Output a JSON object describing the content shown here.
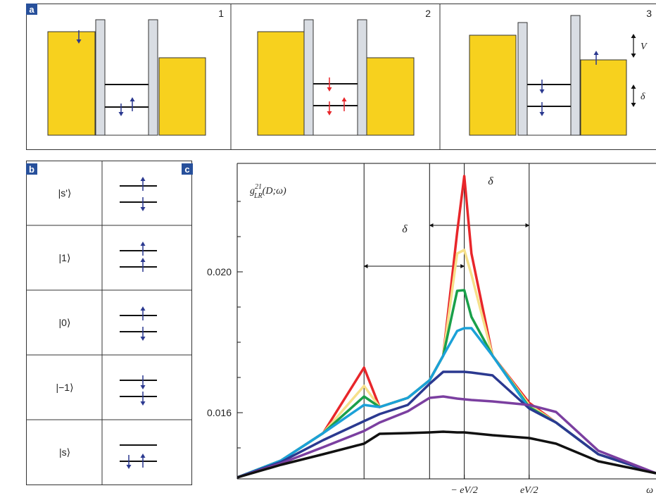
{
  "panel_labels": [
    "a",
    "b",
    "c"
  ],
  "diagram": {
    "frames": [
      "1",
      "2",
      "3"
    ],
    "bias_label": "V",
    "splitting_label": "δ"
  },
  "table": {
    "rows": [
      "|s'⟩",
      "|1⟩",
      "|0⟩",
      "|−1⟩",
      "|s⟩"
    ]
  },
  "chart_data": {
    "type": "line",
    "y_label": {
      "base": "g",
      "sub": "LR",
      "sup": "21",
      "args": "(D;ω)"
    },
    "x_label": "ω",
    "x": [
      -8.0,
      -6.65,
      -5.35,
      -4.09,
      -3.61,
      -2.74,
      -2.07,
      -1.65,
      -1.22,
      -1.0,
      -0.78,
      -0.13,
      1.0,
      1.83,
      3.13,
      4.91
    ],
    "xlim": [
      -8.0,
      4.91
    ],
    "xticks": [
      {
        "value": -1,
        "label": "− eV/2"
      },
      {
        "value": 1,
        "label": "eV/2"
      }
    ],
    "reference_lines": [
      -4.09,
      -2.07,
      -1,
      1
    ],
    "annotations": [
      "δ",
      "δ"
    ],
    "ylim": [
      0.01412,
      0.02308
    ],
    "yticks": [
      0.016,
      {
        "value": 0.02,
        "label": "0.020"
      }
    ],
    "minor_yticks": [
      0.015,
      0.017,
      0.018,
      0.019,
      0.021,
      0.022
    ],
    "series": [
      {
        "color": "#e8262a",
        "values": [
          0.01416,
          0.01464,
          0.01542,
          0.01728,
          0.01616,
          0.01642,
          0.01692,
          0.01762,
          0.02112,
          0.02272,
          0.02052,
          0.01762,
          0.01628,
          0.01572,
          0.01482,
          0.01428
        ]
      },
      {
        "color": "#f6e08a",
        "values": [
          0.01416,
          0.01464,
          0.01542,
          0.01676,
          0.01616,
          0.01642,
          0.01692,
          0.01762,
          0.02052,
          0.02062,
          0.01992,
          0.01762,
          0.01622,
          0.01572,
          0.01482,
          0.01428
        ]
      },
      {
        "color": "#1aa04a",
        "values": [
          0.01416,
          0.01464,
          0.01542,
          0.01646,
          0.01616,
          0.01642,
          0.01692,
          0.01762,
          0.01946,
          0.01948,
          0.01872,
          0.01762,
          0.01616,
          0.01572,
          0.01482,
          0.01428
        ]
      },
      {
        "color": "#1ba1d8",
        "values": [
          0.01416,
          0.01464,
          0.01542,
          0.01622,
          0.01616,
          0.01642,
          0.01692,
          0.01762,
          0.01832,
          0.0184,
          0.0184,
          0.01762,
          0.01612,
          0.01572,
          0.01482,
          0.01428
        ]
      },
      {
        "color": "#2b3990",
        "values": [
          0.01416,
          0.0146,
          0.01522,
          0.01576,
          0.01596,
          0.01622,
          0.01682,
          0.01716,
          0.01716,
          0.01716,
          0.01714,
          0.01706,
          0.01612,
          0.01572,
          0.01482,
          0.01428
        ]
      },
      {
        "color": "#7b3fa0",
        "values": [
          0.01416,
          0.01456,
          0.01502,
          0.01548,
          0.01572,
          0.01604,
          0.01642,
          0.01646,
          0.0164,
          0.01638,
          0.01636,
          0.01632,
          0.01622,
          0.01602,
          0.01492,
          0.01428
        ]
      },
      {
        "color": "#111111",
        "values": [
          0.01416,
          0.01452,
          0.01482,
          0.01512,
          0.0154,
          0.01542,
          0.01544,
          0.01546,
          0.01544,
          0.01544,
          0.01542,
          0.01536,
          0.01528,
          0.01512,
          0.01462,
          0.01428
        ]
      }
    ]
  }
}
